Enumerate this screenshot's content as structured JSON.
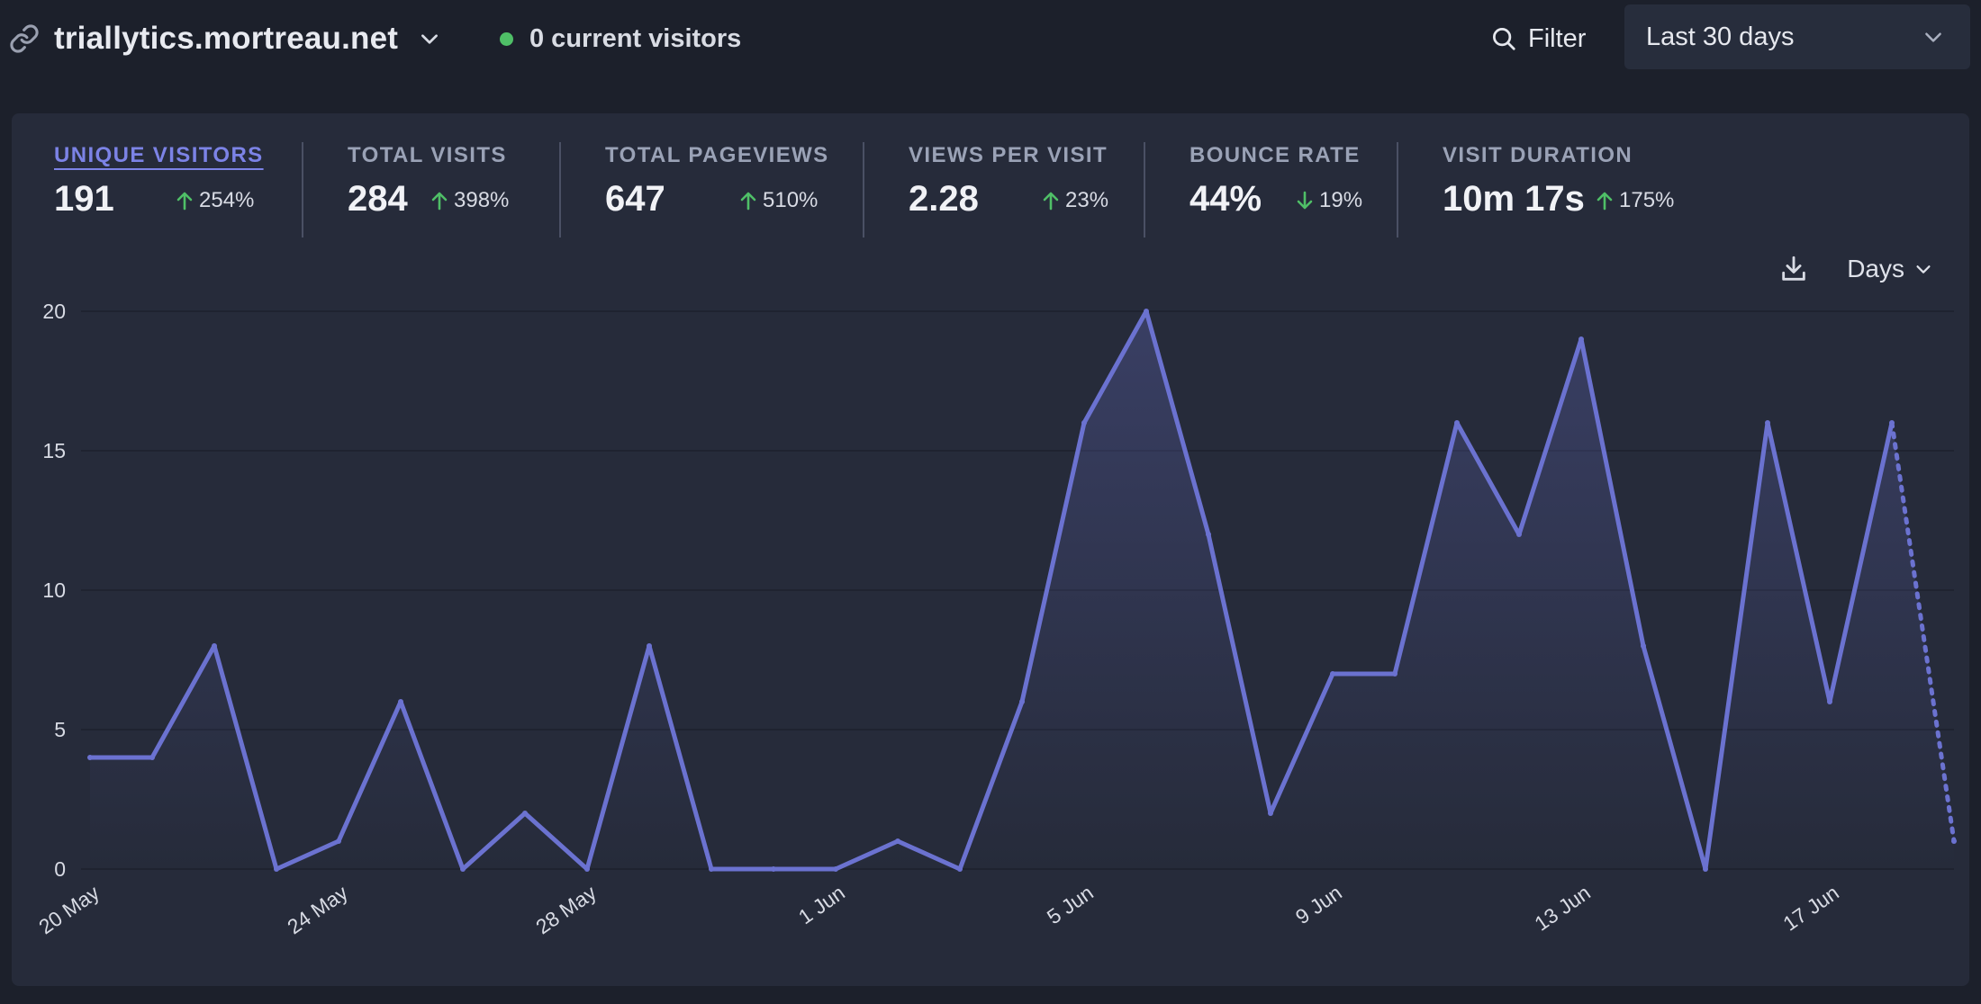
{
  "header": {
    "site_domain": "triallytics.mortreau.net",
    "link_icon": "link-icon",
    "current_visitors": "0 current visitors",
    "filter_label": "Filter",
    "period_selected": "Last 30 days"
  },
  "stats": [
    {
      "label": "UNIQUE VISITORS",
      "value": "191",
      "change": "254%",
      "direction": "up",
      "active": true
    },
    {
      "label": "TOTAL VISITS",
      "value": "284",
      "change": "398%",
      "direction": "up",
      "active": false
    },
    {
      "label": "TOTAL PAGEVIEWS",
      "value": "647",
      "change": "510%",
      "direction": "up",
      "active": false
    },
    {
      "label": "VIEWS PER VISIT",
      "value": "2.28",
      "change": "23%",
      "direction": "up",
      "active": false
    },
    {
      "label": "BOUNCE RATE",
      "value": "44%",
      "change": "19%",
      "direction": "down",
      "active": false
    },
    {
      "label": "VISIT DURATION",
      "value": "10m 17s",
      "change": "175%",
      "direction": "up",
      "active": false
    }
  ],
  "chart_controls": {
    "download_icon": "download-icon",
    "interval_label": "Days"
  },
  "colors": {
    "accent": "#6b72d0",
    "positive": "#4fbf67",
    "background": "#1c202b",
    "card": "#262b3a"
  },
  "chart_data": {
    "type": "area",
    "x": [
      "20 May",
      "21 May",
      "22 May",
      "23 May",
      "24 May",
      "25 May",
      "26 May",
      "27 May",
      "28 May",
      "29 May",
      "30 May",
      "31 May",
      "1 Jun",
      "2 Jun",
      "3 Jun",
      "4 Jun",
      "5 Jun",
      "6 Jun",
      "7 Jun",
      "8 Jun",
      "9 Jun",
      "10 Jun",
      "11 Jun",
      "12 Jun",
      "13 Jun",
      "14 Jun",
      "15 Jun",
      "16 Jun",
      "17 Jun",
      "18 Jun",
      "19 Jun"
    ],
    "values": [
      4,
      4,
      8,
      0,
      1,
      6,
      0,
      2,
      0,
      8,
      0,
      0,
      0,
      1,
      0,
      6,
      16,
      20,
      12,
      2,
      7,
      7,
      16,
      12,
      19,
      8,
      0,
      16,
      6,
      16,
      1
    ],
    "incomplete_last_point": true,
    "x_tick_labels": [
      "20 May",
      "24 May",
      "28 May",
      "1 Jun",
      "5 Jun",
      "9 Jun",
      "13 Jun",
      "17 Jun"
    ],
    "y_ticks": [
      0,
      5,
      10,
      15,
      20
    ],
    "ylim": [
      0,
      20
    ],
    "grid": true,
    "legend": "none",
    "series_name": ""
  }
}
